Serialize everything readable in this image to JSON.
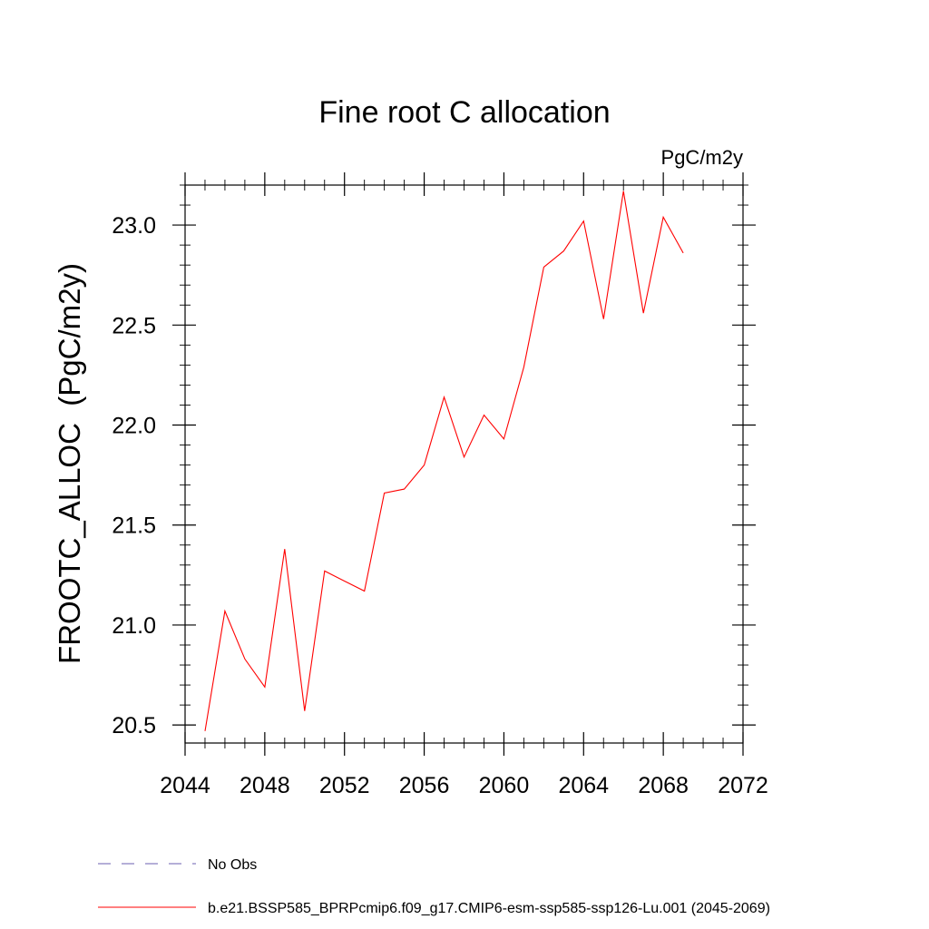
{
  "chart_data": {
    "type": "line",
    "title": "Fine root C allocation",
    "units_label": "PgC/m2y",
    "ylabel": "FROOTC_ALLOC  (PgC/m2y)",
    "xlabel": "",
    "xlim": [
      2044,
      2072
    ],
    "ylim": [
      20.41,
      23.2
    ],
    "x_ticks": [
      2044,
      2048,
      2052,
      2056,
      2060,
      2064,
      2068,
      2072
    ],
    "y_ticks": [
      20.5,
      21.0,
      21.5,
      22.0,
      22.5,
      23.0
    ],
    "x_tick_labels": [
      "2044",
      "2048",
      "2052",
      "2056",
      "2060",
      "2064",
      "2068",
      "2072"
    ],
    "y_tick_labels": [
      "20.5",
      "21.0",
      "21.5",
      "22.0",
      "22.5",
      "23.0"
    ],
    "grid": false,
    "legend_position": "bottom-left",
    "series": [
      {
        "name": "b.e21.BSSP585_BPRPcmip6.f09_g17.CMIP6-esm-ssp585-ssp126-Lu.001 (2045-2069)",
        "color": "#ff0000",
        "x": [
          2045,
          2046,
          2047,
          2048,
          2049,
          2050,
          2051,
          2052,
          2053,
          2054,
          2055,
          2056,
          2057,
          2058,
          2059,
          2060,
          2061,
          2062,
          2063,
          2064,
          2065,
          2066,
          2067,
          2068,
          2069
        ],
        "values": [
          20.47,
          21.07,
          20.83,
          20.69,
          21.38,
          20.57,
          21.27,
          21.22,
          21.17,
          21.66,
          21.68,
          21.8,
          22.14,
          21.84,
          22.05,
          21.93,
          22.29,
          22.79,
          22.87,
          23.02,
          22.53,
          23.17,
          22.56,
          23.04,
          22.86
        ]
      }
    ],
    "legend": [
      {
        "label": "No Obs",
        "color": "#6b5fb0",
        "style": "dashed"
      },
      {
        "label": "b.e21.BSSP585_BPRPcmip6.f09_g17.CMIP6-esm-ssp585-ssp126-Lu.001 (2045-2069)",
        "color": "#ff0000",
        "style": "solid"
      }
    ]
  }
}
